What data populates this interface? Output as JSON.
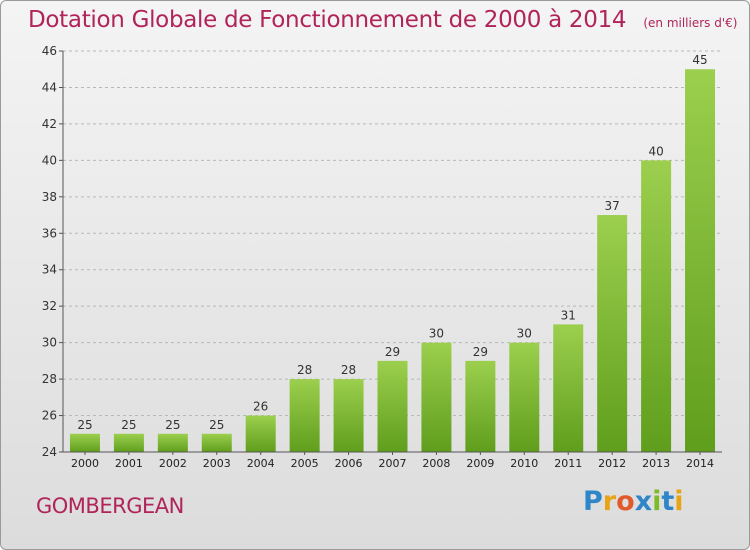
{
  "header": {
    "title": "Dotation Globale de Fonctionnement de 2000 à 2014",
    "unit": "(en milliers d'€)"
  },
  "footer": {
    "commune": "GOMBERGEAN",
    "logo_letters": [
      "P",
      "r",
      "o",
      "x",
      "i",
      "t",
      "i"
    ]
  },
  "colors": {
    "title": "#b0245a",
    "bar_light": "#9ccf4e",
    "bar_dark": "#5f9e1c",
    "logo": [
      "#2e86c9",
      "#e8a317",
      "#e05a2b",
      "#2e86c9",
      "#7dbb2a",
      "#2e86c9",
      "#e8a317"
    ]
  },
  "chart_data": {
    "type": "bar",
    "title": "Dotation Globale de Fonctionnement de 2000 à 2014",
    "subtitle": "(en milliers d'€)",
    "categories": [
      "2000",
      "2001",
      "2002",
      "2003",
      "2004",
      "2005",
      "2006",
      "2007",
      "2008",
      "2009",
      "2010",
      "2011",
      "2012",
      "2013",
      "2014"
    ],
    "values": [
      25,
      25,
      25,
      25,
      26,
      28,
      28,
      29,
      30,
      29,
      30,
      31,
      37,
      40,
      45
    ],
    "ylim": [
      24,
      46
    ],
    "yticks": [
      24,
      26,
      28,
      30,
      32,
      34,
      36,
      38,
      40,
      42,
      44,
      46
    ],
    "grid": "horizontal-dashed",
    "data_labels": true
  }
}
